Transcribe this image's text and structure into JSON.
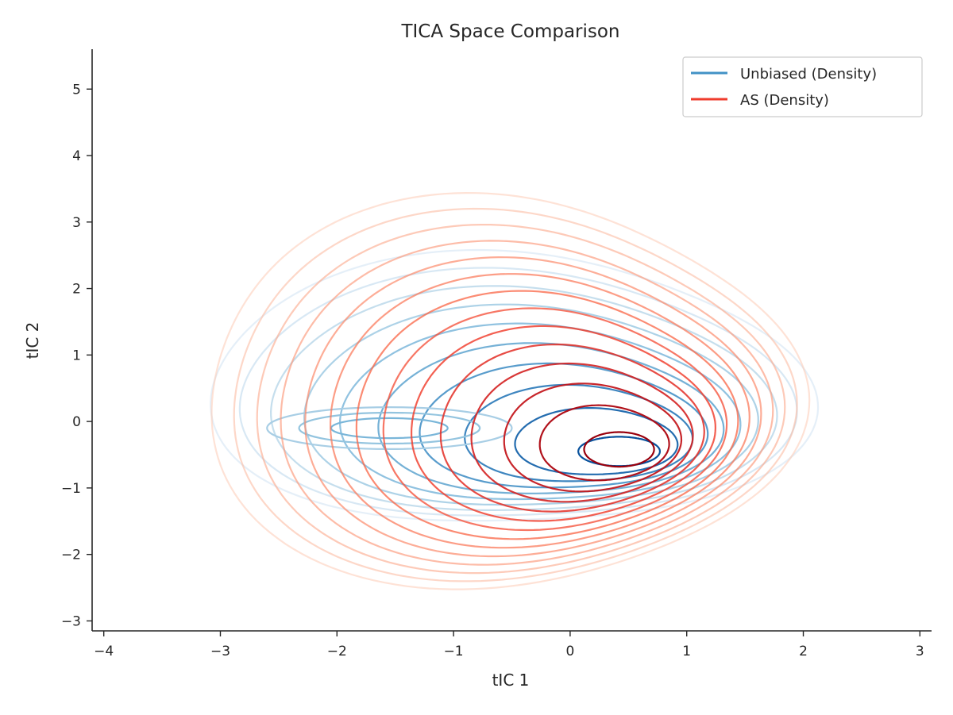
{
  "chart_data": {
    "type": "contour",
    "title": "TICA Space Comparison",
    "xlabel": "tIC 1",
    "ylabel": "tIC 2",
    "xlim": [
      -4.1,
      3.1
    ],
    "ylim": [
      -3.15,
      5.6
    ],
    "xticks": [
      -4,
      -3,
      -2,
      -1,
      0,
      1,
      2,
      3
    ],
    "yticks": [
      -3,
      -2,
      -1,
      0,
      1,
      2,
      3,
      4,
      5
    ],
    "grid": false,
    "legend_position": "top-right",
    "series": [
      {
        "name": "Unbiased (Density)",
        "color": "#4292c6",
        "colormap": [
          "#deebf7",
          "#c6dbef",
          "#9ecae1",
          "#6baed6",
          "#4292c6",
          "#2171b5",
          "#08519c"
        ],
        "levels": 10,
        "modes": [
          {
            "x": 0.42,
            "y": -0.45,
            "rx": 0.35,
            "ry": 0.22
          },
          {
            "x": -1.55,
            "y": -0.1,
            "rx": 0.5,
            "ry": 0.15
          }
        ],
        "extent": {
          "xmin": -3.0,
          "xmax": 1.9,
          "ymin": -1.7,
          "ymax": 2.6
        }
      },
      {
        "name": "AS (Density)",
        "color": "#ef3b2c",
        "colormap": [
          "#fee0d2",
          "#fcbba1",
          "#fc9272",
          "#fb6a4a",
          "#ef3b2c",
          "#cb181d",
          "#99000d"
        ],
        "levels": 14,
        "modes": [
          {
            "x": 0.42,
            "y": -0.42,
            "rx": 0.3,
            "ry": 0.26
          }
        ],
        "extent": {
          "xmin": -3.0,
          "xmax": 2.1,
          "ymin": -2.4,
          "ymax": 3.45
        }
      }
    ]
  }
}
